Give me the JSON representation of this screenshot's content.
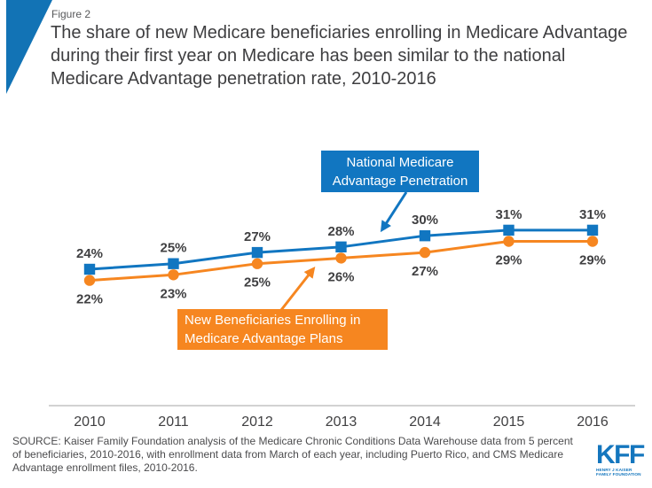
{
  "header": {
    "figure_label": "Figure 2",
    "title_lines": [
      "The share of new Medicare beneficiaries enrolling in Medicare Advantage",
      "during their first year on Medicare has been similar to the national",
      "Medicare Advantage penetration rate, 2010-2016"
    ]
  },
  "chart_data": {
    "type": "line",
    "x": [
      "2010",
      "2011",
      "2012",
      "2013",
      "2014",
      "2015",
      "2016"
    ],
    "series": [
      {
        "name": "National Medicare Advantage Penetration",
        "legend_lines": [
          "National Medicare",
          "Advantage Penetration"
        ],
        "values": [
          24,
          25,
          27,
          28,
          30,
          31,
          31
        ],
        "color": "#1176C1",
        "marker": "square",
        "label_position": "above"
      },
      {
        "name": "New Beneficiaries Enrolling in Medicare Advantage Plans",
        "legend_lines": [
          "New Beneficiaries Enrolling in",
          "Medicare Advantage Plans"
        ],
        "values": [
          22,
          23,
          25,
          26,
          27,
          29,
          29
        ],
        "color": "#F68620",
        "marker": "circle",
        "label_position": "below"
      }
    ],
    "value_suffix": "%",
    "ylim": [
      20,
      33
    ],
    "grid": false,
    "legend_position": "inline-callouts"
  },
  "footer": {
    "source_lines": [
      "SOURCE: Kaiser Family Foundation analysis of the Medicare Chronic Conditions Data Warehouse data from 5 percent",
      "of beneficiaries, 2010-2016, with enrollment  data from March of each year, including Puerto Rico, and CMS Medicare",
      "Advantage enrollment files, 2010-2016."
    ],
    "logo": {
      "text": "KFF",
      "sub_lines": [
        "HENRY J KAISER",
        "FAMILY FOUNDATION"
      ]
    }
  },
  "colors": {
    "blue": "#1176C1",
    "orange": "#F68620",
    "triangle_blue": "#1273B5",
    "axis_gray": "#C3C3C3",
    "text_dark": "#404042"
  }
}
